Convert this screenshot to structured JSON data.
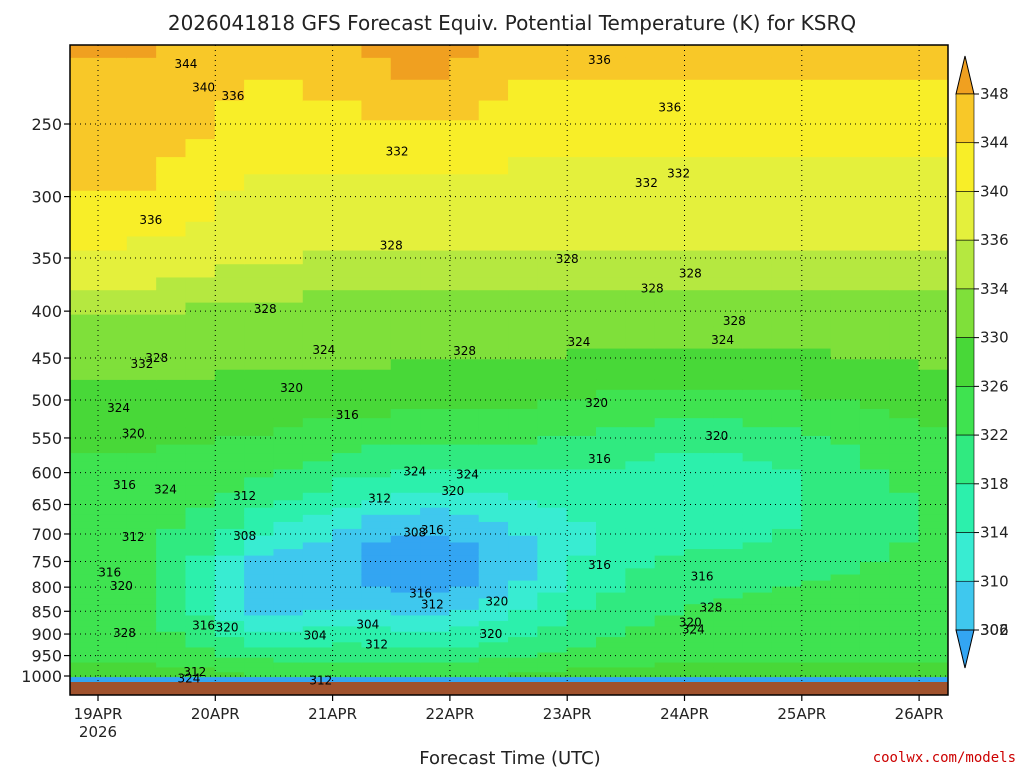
{
  "chart_data": {
    "type": "heatmap",
    "title": "2026041818 GFS Forecast Equiv. Potential Temperature (K) for KSRQ",
    "xlabel": "Forecast Time (UTC)",
    "ylabel": "",
    "x_ticks": [
      "19APR",
      "20APR",
      "21APR",
      "22APR",
      "23APR",
      "24APR",
      "25APR",
      "26APR"
    ],
    "x_year_label": "2026",
    "x_range": [
      "2026-04-18T18Z",
      "2026-04-26T06Z"
    ],
    "y_axis": "pressure (hPa), inverted",
    "y_ticks": [
      250,
      300,
      350,
      400,
      450,
      500,
      550,
      600,
      650,
      700,
      750,
      800,
      850,
      900,
      950,
      1000
    ],
    "ylim": [
      1013,
      200
    ],
    "grid": true,
    "colorbar": {
      "levels": [
        302,
        306,
        310,
        314,
        318,
        322,
        326,
        330,
        334,
        336,
        340,
        344,
        348
      ],
      "colors": [
        "#33a5f2",
        "#3fc8ee",
        "#38ecd2",
        "#2cf0ac",
        "#30ea80",
        "#3fe350",
        "#48d838",
        "#7fe03a",
        "#b5e840",
        "#e4f03c",
        "#f8ee28",
        "#f8c828",
        "#f0a020"
      ]
    },
    "contour_labels": [
      {
        "t": 3.0,
        "p": 215,
        "v": "344"
      },
      {
        "t": 3.6,
        "p": 228,
        "v": "340"
      },
      {
        "t": 4.6,
        "p": 233,
        "v": "336"
      },
      {
        "t": 10.2,
        "p": 268,
        "v": "332"
      },
      {
        "t": 17.1,
        "p": 213,
        "v": "336"
      },
      {
        "t": 19.5,
        "p": 240,
        "v": "336"
      },
      {
        "t": 18.7,
        "p": 290,
        "v": "332"
      },
      {
        "t": 19.8,
        "p": 283,
        "v": "332"
      },
      {
        "t": 1.8,
        "p": 318,
        "v": "336"
      },
      {
        "t": 10.0,
        "p": 339,
        "v": "328"
      },
      {
        "t": 16.0,
        "p": 351,
        "v": "328"
      },
      {
        "t": 18.9,
        "p": 378,
        "v": "328"
      },
      {
        "t": 20.2,
        "p": 364,
        "v": "328"
      },
      {
        "t": 5.7,
        "p": 398,
        "v": "328"
      },
      {
        "t": 21.7,
        "p": 410,
        "v": "328"
      },
      {
        "t": 1.5,
        "p": 457,
        "v": "332"
      },
      {
        "t": 2.0,
        "p": 450,
        "v": "328"
      },
      {
        "t": 7.7,
        "p": 441,
        "v": "324"
      },
      {
        "t": 12.5,
        "p": 442,
        "v": "328"
      },
      {
        "t": 16.4,
        "p": 432,
        "v": "324"
      },
      {
        "t": 21.3,
        "p": 430,
        "v": "324"
      },
      {
        "t": 0.7,
        "p": 510,
        "v": "324"
      },
      {
        "t": 6.6,
        "p": 485,
        "v": "320"
      },
      {
        "t": 8.5,
        "p": 519,
        "v": "316"
      },
      {
        "t": 17.0,
        "p": 504,
        "v": "320"
      },
      {
        "t": 21.1,
        "p": 547,
        "v": "320"
      },
      {
        "t": 1.2,
        "p": 544,
        "v": "320"
      },
      {
        "t": 10.8,
        "p": 598,
        "v": "324"
      },
      {
        "t": 12.6,
        "p": 603,
        "v": "324"
      },
      {
        "t": 17.1,
        "p": 580,
        "v": "316"
      },
      {
        "t": 0.9,
        "p": 619,
        "v": "316"
      },
      {
        "t": 1.2,
        "p": 705,
        "v": "312"
      },
      {
        "t": 2.3,
        "p": 626,
        "v": "324"
      },
      {
        "t": 5.0,
        "p": 636,
        "v": "312"
      },
      {
        "t": 9.6,
        "p": 640,
        "v": "312"
      },
      {
        "t": 12.1,
        "p": 628,
        "v": "320"
      },
      {
        "t": 5.0,
        "p": 704,
        "v": "308"
      },
      {
        "t": 10.8,
        "p": 697,
        "v": "308"
      },
      {
        "t": 11.4,
        "p": 693,
        "v": "316"
      },
      {
        "t": 0.4,
        "p": 771,
        "v": "316"
      },
      {
        "t": 0.8,
        "p": 798,
        "v": "320"
      },
      {
        "t": 17.1,
        "p": 757,
        "v": "316"
      },
      {
        "t": 20.6,
        "p": 779,
        "v": "316"
      },
      {
        "t": 11.0,
        "p": 813,
        "v": "316"
      },
      {
        "t": 11.4,
        "p": 836,
        "v": "312"
      },
      {
        "t": 13.6,
        "p": 829,
        "v": "320"
      },
      {
        "t": 20.9,
        "p": 842,
        "v": "328"
      },
      {
        "t": 0.9,
        "p": 898,
        "v": "328"
      },
      {
        "t": 3.6,
        "p": 881,
        "v": "316"
      },
      {
        "t": 4.4,
        "p": 885,
        "v": "320"
      },
      {
        "t": 7.4,
        "p": 903,
        "v": "304"
      },
      {
        "t": 9.2,
        "p": 879,
        "v": "304"
      },
      {
        "t": 9.5,
        "p": 924,
        "v": "312"
      },
      {
        "t": 13.4,
        "p": 900,
        "v": "320"
      },
      {
        "t": 20.2,
        "p": 874,
        "v": "320"
      },
      {
        "t": 20.3,
        "p": 890,
        "v": "324"
      },
      {
        "t": 3.3,
        "p": 990,
        "v": "312"
      },
      {
        "t": 3.1,
        "p": 1006,
        "v": "324"
      },
      {
        "t": 7.6,
        "p": 1011,
        "v": "312"
      }
    ]
  },
  "credit": "coolwx.com/models"
}
